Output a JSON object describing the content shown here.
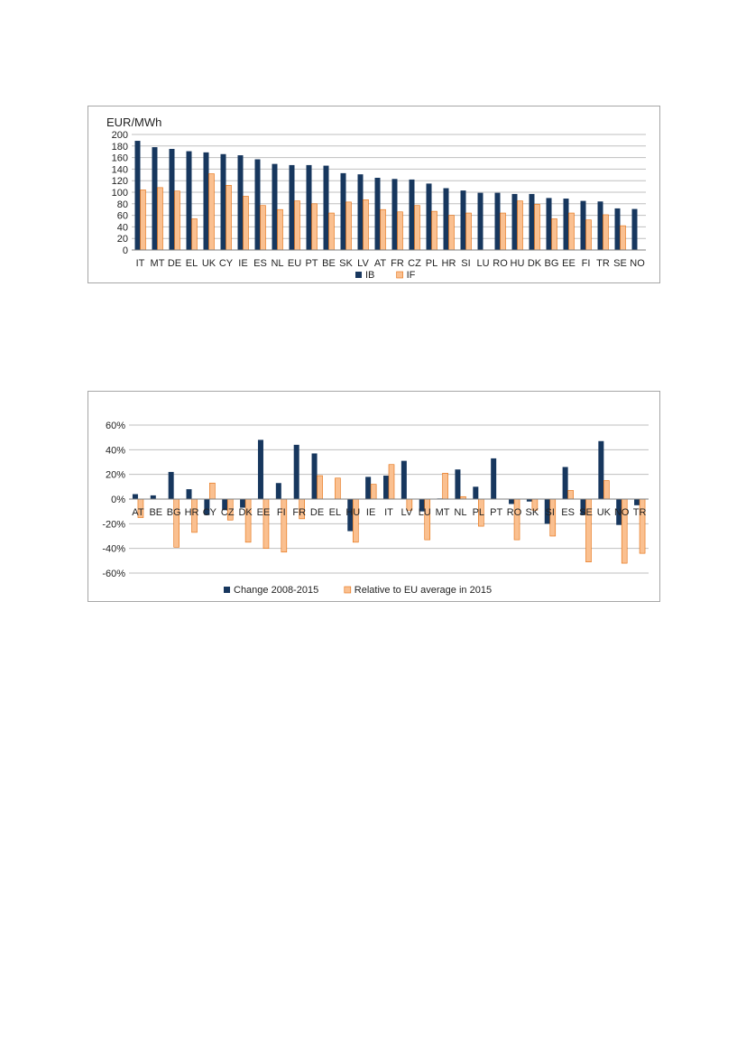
{
  "chart_data": [
    {
      "type": "bar",
      "ylabel": "EUR/MWh",
      "ylim": [
        0,
        200
      ],
      "yticks": [
        0,
        20,
        40,
        60,
        80,
        100,
        120,
        140,
        160,
        180,
        200
      ],
      "grid": true,
      "legend": "bottom",
      "categories": [
        "IT",
        "MT",
        "DE",
        "EL",
        "UK",
        "CY",
        "IE",
        "ES",
        "NL",
        "EU",
        "PT",
        "BE",
        "SK",
        "LV",
        "AT",
        "FR",
        "CZ",
        "PL",
        "HR",
        "SI",
        "LU",
        "RO",
        "HU",
        "DK",
        "BG",
        "EE",
        "FI",
        "TR",
        "SE",
        "NO"
      ],
      "series": [
        {
          "name": "IB",
          "color": "#17375e",
          "values": [
            189,
            178,
            175,
            171,
            169,
            166,
            164,
            157,
            149,
            147,
            147,
            146,
            133,
            131,
            125,
            123,
            122,
            115,
            107,
            103,
            99,
            99,
            97,
            97,
            90,
            89,
            85,
            84,
            72,
            71
          ]
        },
        {
          "name": "IF",
          "color": "#fac090",
          "values": [
            104,
            108,
            102,
            54,
            132,
            112,
            93,
            77,
            70,
            85,
            80,
            64,
            83,
            87,
            70,
            66,
            77,
            67,
            60,
            64,
            0,
            64,
            85,
            79,
            54,
            64,
            52,
            61,
            42,
            0
          ]
        }
      ]
    },
    {
      "type": "bar",
      "ylim": [
        -0.6,
        0.6
      ],
      "yticks": [
        -0.6,
        -0.4,
        -0.2,
        0,
        0.2,
        0.4,
        0.6
      ],
      "ytick_labels": [
        "-60%",
        "-40%",
        "-20%",
        "0%",
        "20%",
        "40%",
        "60%"
      ],
      "grid": true,
      "legend": "bottom",
      "categories": [
        "AT",
        "BE",
        "BG",
        "HR",
        "CY",
        "CZ",
        "DK",
        "EE",
        "FI",
        "FR",
        "DE",
        "EL",
        "HU",
        "IE",
        "IT",
        "LV",
        "LU",
        "MT",
        "NL",
        "PL",
        "PT",
        "RO",
        "SK",
        "SI",
        "ES",
        "SE",
        "UK",
        "NO",
        "TR"
      ],
      "series": [
        {
          "name": "Change 2008-2015",
          "color": "#17375e",
          "values": [
            0.04,
            0.03,
            0.22,
            0.08,
            -0.13,
            -0.09,
            -0.07,
            0.48,
            0.13,
            0.44,
            0.37,
            0,
            -0.26,
            0.18,
            0.19,
            0.31,
            -0.1,
            0.005,
            0.24,
            0.1,
            0.33,
            -0.04,
            -0.02,
            -0.2,
            0.26,
            -0.13,
            0.47,
            -0.21,
            -0.05
          ]
        },
        {
          "name": "Relative to EU average in 2015",
          "color": "#fac090",
          "values": [
            -0.15,
            0,
            -0.39,
            -0.27,
            0.13,
            -0.17,
            -0.35,
            -0.4,
            -0.43,
            -0.16,
            0.19,
            0.17,
            -0.35,
            0.12,
            0.28,
            -0.09,
            -0.33,
            0.21,
            0.02,
            -0.22,
            0,
            -0.33,
            -0.09,
            -0.3,
            0.07,
            -0.51,
            0.15,
            -0.52,
            -0.44
          ]
        }
      ]
    }
  ]
}
